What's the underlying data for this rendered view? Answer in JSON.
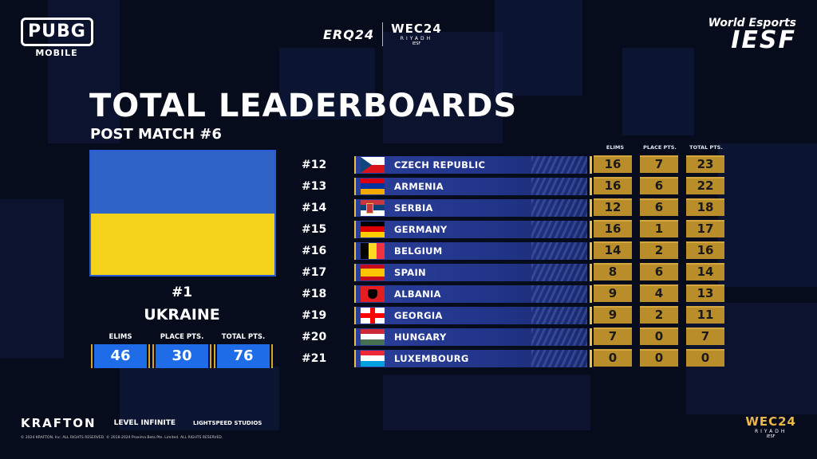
{
  "brand": {
    "pubg_top": "PUBG",
    "pubg_bottom": "MOBILE",
    "erq": "ERQ24",
    "wec": "WEC24",
    "wec_sub": "RIYADH",
    "wec_sub2": "IESF",
    "iesf_top": "World Esports",
    "iesf_bottom": "IESF"
  },
  "title": "TOTAL LEADERBOARDS",
  "subtitle": "POST MATCH #6",
  "leader": {
    "rank": "#1",
    "name": "UKRAINE",
    "flag_colors": [
      "#2f63c6",
      "#f5d21a"
    ],
    "stats": [
      {
        "label": "ELIMS",
        "value": "46"
      },
      {
        "label": "PLACE PTS.",
        "value": "30"
      },
      {
        "label": "TOTAL PTS.",
        "value": "76"
      }
    ]
  },
  "table": {
    "headers": [
      "ELIMS",
      "PLACE PTS.",
      "TOTAL PTS."
    ],
    "rows": [
      {
        "rank": "#12",
        "team": "CZECH REPUBLIC",
        "elims": "16",
        "place": "7",
        "total": "23"
      },
      {
        "rank": "#13",
        "team": "ARMENIA",
        "elims": "16",
        "place": "6",
        "total": "22"
      },
      {
        "rank": "#14",
        "team": "SERBIA",
        "elims": "12",
        "place": "6",
        "total": "18"
      },
      {
        "rank": "#15",
        "team": "GERMANY",
        "elims": "16",
        "place": "1",
        "total": "17"
      },
      {
        "rank": "#16",
        "team": "BELGIUM",
        "elims": "14",
        "place": "2",
        "total": "16"
      },
      {
        "rank": "#17",
        "team": "SPAIN",
        "elims": "8",
        "place": "6",
        "total": "14"
      },
      {
        "rank": "#18",
        "team": "ALBANIA",
        "elims": "9",
        "place": "4",
        "total": "13"
      },
      {
        "rank": "#19",
        "team": "GEORGIA",
        "elims": "9",
        "place": "2",
        "total": "11"
      },
      {
        "rank": "#20",
        "team": "HUNGARY",
        "elims": "7",
        "place": "0",
        "total": "7"
      },
      {
        "rank": "#21",
        "team": "LUXEMBOURG",
        "elims": "0",
        "place": "0",
        "total": "0"
      }
    ]
  },
  "footer": {
    "krafton": "KRAFTON",
    "level_infinite": "LEVEL INFINITE",
    "lightspeed": "LIGHTSPEED STUDIOS",
    "legal": "© 2024 KRAFTON, Inc. ALL RIGHTS RESERVED.   © 2018-2024 Proxima Beta Pte. Limited. ALL RIGHTS RESERVED.",
    "wec": "WEC24",
    "wec_sub": "RIYADH",
    "wec_sub2": "IESF"
  }
}
